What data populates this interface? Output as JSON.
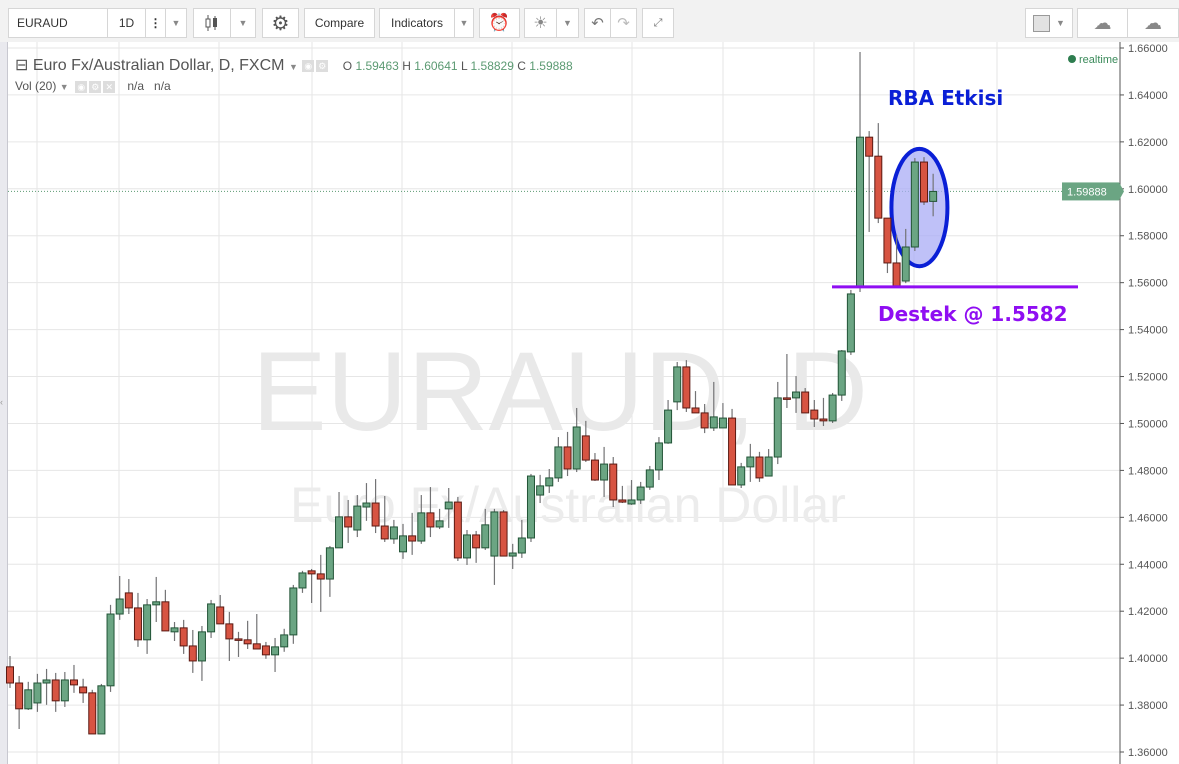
{
  "toolbar": {
    "symbol": "EURAUD",
    "interval": "1D",
    "compare_label": "Compare",
    "indicators_label": "Indicators",
    "icons": [
      "more-vertical-icon",
      "candlestick-icon",
      "gear-icon",
      "alarm-clock-icon",
      "lightbulb-icon",
      "undo-icon",
      "redo-icon",
      "fullscreen-icon",
      "layout-square-icon",
      "cloud-download-icon",
      "cloud-upload-icon"
    ]
  },
  "legend": {
    "title": "Euro Fx/Australian Dollar, D, FXCM",
    "o_label": "O",
    "o": "1.59463",
    "h_label": "H",
    "h": "1.60641",
    "l_label": "L",
    "l": "1.58829",
    "c_label": "C",
    "c": "1.59888",
    "vol_label": "Vol (20)",
    "vol_value1": "n/a",
    "vol_value2": "n/a"
  },
  "realtime_label": "realtime",
  "watermark": {
    "line1": "EURAUD, D",
    "line2": "Euro Fx/Australian Dollar"
  },
  "chart_data": {
    "type": "candlestick",
    "symbol": "EURAUD",
    "interval": "D",
    "ylim": [
      1.36,
      1.66
    ],
    "y_ticks": [
      "1.36000",
      "1.38000",
      "1.40000",
      "1.42000",
      "1.44000",
      "1.46000",
      "1.48000",
      "1.50000",
      "1.52000",
      "1.54000",
      "1.56000",
      "1.58000",
      "1.60000",
      "1.62000",
      "1.64000",
      "1.66000"
    ],
    "grid": true,
    "last_price": "1.59888",
    "colors": {
      "up": "#6ba583",
      "down": "#d75442",
      "up_border": "#225437",
      "down_border": "#5b1a13",
      "wick": "#737375",
      "last_price": "#6ba583"
    },
    "ohlc_fields": [
      "open",
      "high",
      "low",
      "close"
    ],
    "candles": [
      [
        1.3963,
        1.4009,
        1.3873,
        1.3894
      ],
      [
        1.3894,
        1.3924,
        1.3698,
        1.3784
      ],
      [
        1.3784,
        1.3899,
        1.3779,
        1.3865
      ],
      [
        1.3809,
        1.3933,
        1.3771,
        1.3894
      ],
      [
        1.3894,
        1.3954,
        1.3801,
        1.3907
      ],
      [
        1.3907,
        1.3937,
        1.3771,
        1.3818
      ],
      [
        1.3818,
        1.3941,
        1.3792,
        1.3907
      ],
      [
        1.3907,
        1.3971,
        1.3852,
        1.3886
      ],
      [
        1.3877,
        1.3912,
        1.3809,
        1.3852
      ],
      [
        1.3852,
        1.3865,
        1.3677,
        1.3677
      ],
      [
        1.3677,
        1.389,
        1.3677,
        1.3882
      ],
      [
        1.3882,
        1.4227,
        1.3856,
        1.4188
      ],
      [
        1.4188,
        1.435,
        1.4163,
        1.4252
      ],
      [
        1.4278,
        1.4337,
        1.4188,
        1.4214
      ],
      [
        1.4214,
        1.4278,
        1.4048,
        1.4078
      ],
      [
        1.4078,
        1.4252,
        1.4018,
        1.4227
      ],
      [
        1.4227,
        1.4346,
        1.4154,
        1.424
      ],
      [
        1.424,
        1.4291,
        1.4116,
        1.4116
      ],
      [
        1.4112,
        1.4154,
        1.4073,
        1.4129
      ],
      [
        1.4129,
        1.4163,
        1.4018,
        1.4052
      ],
      [
        1.4052,
        1.412,
        1.3937,
        1.3988
      ],
      [
        1.3988,
        1.4137,
        1.3903,
        1.4112
      ],
      [
        1.4112,
        1.4248,
        1.4086,
        1.4231
      ],
      [
        1.4218,
        1.4269,
        1.4146,
        1.4146
      ],
      [
        1.4146,
        1.4197,
        1.3988,
        1.4082
      ],
      [
        1.4082,
        1.4112,
        1.4005,
        1.4078
      ],
      [
        1.4078,
        1.4159,
        1.4039,
        1.4061
      ],
      [
        1.4061,
        1.4188,
        1.4039,
        1.4039
      ],
      [
        1.4052,
        1.4069,
        1.3997,
        1.4014
      ],
      [
        1.4014,
        1.4086,
        1.3941,
        1.4048
      ],
      [
        1.4048,
        1.4125,
        1.4027,
        1.4099
      ],
      [
        1.4099,
        1.4312,
        1.4061,
        1.4299
      ],
      [
        1.4299,
        1.4372,
        1.4278,
        1.4363
      ],
      [
        1.4372,
        1.438,
        1.4235,
        1.4359
      ],
      [
        1.4359,
        1.444,
        1.4197,
        1.4337
      ],
      [
        1.4337,
        1.4478,
        1.4261,
        1.447
      ],
      [
        1.447,
        1.4708,
        1.447,
        1.4602
      ],
      [
        1.4602,
        1.4674,
        1.4491,
        1.4559
      ],
      [
        1.4546,
        1.4695,
        1.4516,
        1.4648
      ],
      [
        1.4644,
        1.4746,
        1.4585,
        1.4661
      ],
      [
        1.4661,
        1.4763,
        1.4533,
        1.4563
      ],
      [
        1.4563,
        1.4691,
        1.4495,
        1.4508
      ],
      [
        1.4508,
        1.4589,
        1.4487,
        1.4559
      ],
      [
        1.4453,
        1.4572,
        1.4423,
        1.4521
      ],
      [
        1.4521,
        1.4619,
        1.444,
        1.4499
      ],
      [
        1.4499,
        1.4695,
        1.4487,
        1.4619
      ],
      [
        1.4619,
        1.4729,
        1.4516,
        1.4559
      ],
      [
        1.4559,
        1.4636,
        1.455,
        1.4585
      ],
      [
        1.4636,
        1.4725,
        1.4555,
        1.4665
      ],
      [
        1.4665,
        1.4687,
        1.4414,
        1.4427
      ],
      [
        1.4427,
        1.4546,
        1.4397,
        1.4525
      ],
      [
        1.4525,
        1.4542,
        1.4406,
        1.447
      ],
      [
        1.447,
        1.4636,
        1.4461,
        1.4568
      ],
      [
        1.4435,
        1.4636,
        1.4312,
        1.4623
      ],
      [
        1.4623,
        1.4631,
        1.4435,
        1.4435
      ],
      [
        1.4435,
        1.4487,
        1.438,
        1.4448
      ],
      [
        1.4448,
        1.4589,
        1.4427,
        1.4512
      ],
      [
        1.4512,
        1.4785,
        1.4495,
        1.4776
      ],
      [
        1.4695,
        1.4781,
        1.4661,
        1.4734
      ],
      [
        1.4734,
        1.4806,
        1.4704,
        1.4768
      ],
      [
        1.4768,
        1.4942,
        1.4751,
        1.49
      ],
      [
        1.49,
        1.4964,
        1.4776,
        1.4806
      ],
      [
        1.4806,
        1.5066,
        1.4793,
        1.4985
      ],
      [
        1.4947,
        1.5011,
        1.4836,
        1.4844
      ],
      [
        1.4844,
        1.4874,
        1.4755,
        1.4759
      ],
      [
        1.4759,
        1.49,
        1.4687,
        1.4827
      ],
      [
        1.4827,
        1.4857,
        1.4644,
        1.4674
      ],
      [
        1.4674,
        1.4734,
        1.4661,
        1.4665
      ],
      [
        1.4657,
        1.4759,
        1.4653,
        1.4674
      ],
      [
        1.4674,
        1.4751,
        1.4657,
        1.4729
      ],
      [
        1.4729,
        1.4819,
        1.4717,
        1.4802
      ],
      [
        1.4802,
        1.4942,
        1.4759,
        1.4917
      ],
      [
        1.4917,
        1.51,
        1.4913,
        1.5057
      ],
      [
        1.5092,
        1.5262,
        1.5057,
        1.5241
      ],
      [
        1.5241,
        1.527,
        1.5049,
        1.5066
      ],
      [
        1.5066,
        1.5138,
        1.5045,
        1.5045
      ],
      [
        1.5045,
        1.5083,
        1.4959,
        1.4981
      ],
      [
        1.4981,
        1.5177,
        1.4968,
        1.5028
      ],
      [
        1.4981,
        1.5087,
        1.4981,
        1.5023
      ],
      [
        1.5023,
        1.5062,
        1.4738,
        1.4738
      ],
      [
        1.4738,
        1.4832,
        1.4725,
        1.4815
      ],
      [
        1.4815,
        1.4913,
        1.4751,
        1.4857
      ],
      [
        1.4857,
        1.4879,
        1.4751,
        1.4768
      ],
      [
        1.4776,
        1.4891,
        1.4776,
        1.4857
      ],
      [
        1.4857,
        1.5177,
        1.4827,
        1.5109
      ],
      [
        1.5109,
        1.5296,
        1.5066,
        1.5105
      ],
      [
        1.5109,
        1.5202,
        1.5045,
        1.5134
      ],
      [
        1.5134,
        1.5151,
        1.5045,
        1.5045
      ],
      [
        1.5057,
        1.51,
        1.4985,
        1.5019
      ],
      [
        1.5019,
        1.5109,
        1.4989,
        1.5011
      ],
      [
        1.5011,
        1.513,
        1.5002,
        1.5121
      ],
      [
        1.5121,
        1.5313,
        1.5096,
        1.5309
      ],
      [
        1.5305,
        1.5569,
        1.5292,
        1.5552
      ],
      [
        1.5581,
        1.6583,
        1.556,
        1.622
      ],
      [
        1.622,
        1.6246,
        1.5816,
        1.6139
      ],
      [
        1.6139,
        1.628,
        1.5854,
        1.5875
      ],
      [
        1.5875,
        1.5875,
        1.5641,
        1.5684
      ],
      [
        1.5684,
        1.5803,
        1.5582,
        1.5586
      ],
      [
        1.5607,
        1.5829,
        1.5598,
        1.5752
      ],
      [
        1.5752,
        1.6131,
        1.5735,
        1.6114
      ],
      [
        1.6114,
        1.6135,
        1.5931,
        1.5944
      ],
      [
        1.59463,
        1.60641,
        1.58829,
        1.59888
      ]
    ],
    "annotations": [
      {
        "text": "RBA Etkisi",
        "color": "#0a1fd6",
        "type": "text"
      },
      {
        "type": "ellipse",
        "color": "#0a1fd6",
        "fill": "#a9acf5",
        "candles": [
          99,
          102
        ],
        "price_range": [
          1.567,
          1.617
        ]
      },
      {
        "type": "horizontal-line",
        "price": 1.5582,
        "color": "#8f0ef2",
        "candles": [
          93,
          120
        ]
      },
      {
        "text": "Destek @ 1.5582",
        "color": "#8f0ef2",
        "type": "text"
      }
    ]
  }
}
